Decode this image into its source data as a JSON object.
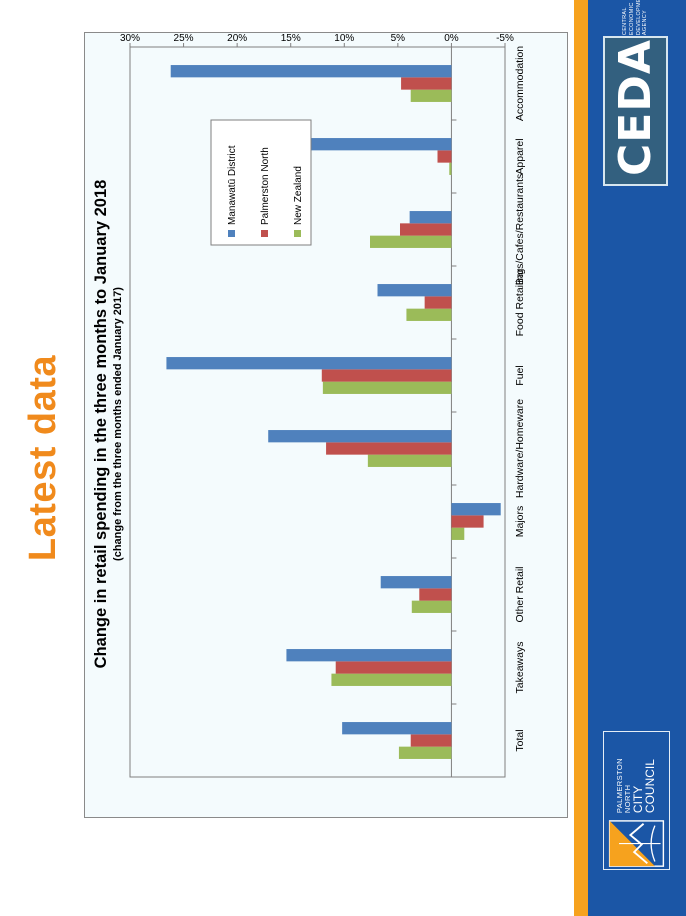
{
  "slide": {
    "heading": "Latest data",
    "colors": {
      "heading": "#f08a1c",
      "band_blue": "#1b56a6",
      "band_orange": "#f6a21e",
      "panel_bg": "#f4fbfd"
    }
  },
  "logos": {
    "ceda": {
      "text": "CEDA",
      "sub_line1": "CENTRAL ECONOMIC",
      "sub_line2": "DEVELOPMENT AGENCY",
      "bg": "#33607f"
    },
    "pncc": {
      "line1": "PALMERSTON NORTH",
      "line2": "CITY COUNCIL"
    }
  },
  "chart_data": {
    "type": "bar",
    "title": "Change in retail spending in the three months to January 2018",
    "subtitle": "(change from the three months ended January 2017)",
    "categories": [
      "Total",
      "Takeaways",
      "Other Retail",
      "Majors",
      "Hardware/Homeware",
      "Fuel",
      "Food Retailing",
      "Bars/Cafes/Restaurants",
      "Apparel",
      "Accommodation"
    ],
    "series": [
      {
        "name": "New Zealand",
        "color": "#9bbb59",
        "values": [
          4.9,
          11.2,
          3.7,
          -1.2,
          7.8,
          12.0,
          4.2,
          7.6,
          0.2,
          3.8
        ]
      },
      {
        "name": "Palmerston North",
        "color": "#c0504d",
        "values": [
          3.8,
          10.8,
          3.0,
          -3.0,
          11.7,
          12.1,
          2.5,
          4.8,
          1.3,
          4.7
        ]
      },
      {
        "name": "Manawatū District",
        "color": "#4f81bd",
        "values": [
          10.2,
          15.4,
          6.6,
          -4.6,
          17.1,
          26.6,
          6.9,
          3.9,
          13.6,
          26.2
        ]
      }
    ],
    "value_axis": {
      "min": -5,
      "max": 30,
      "step": 5,
      "tick_labels": [
        "-5%",
        "0%",
        "5%",
        "10%",
        "15%",
        "20%",
        "25%",
        "30%"
      ]
    },
    "orientation": "horizontal",
    "grid": false,
    "legend_position": "top-right"
  }
}
